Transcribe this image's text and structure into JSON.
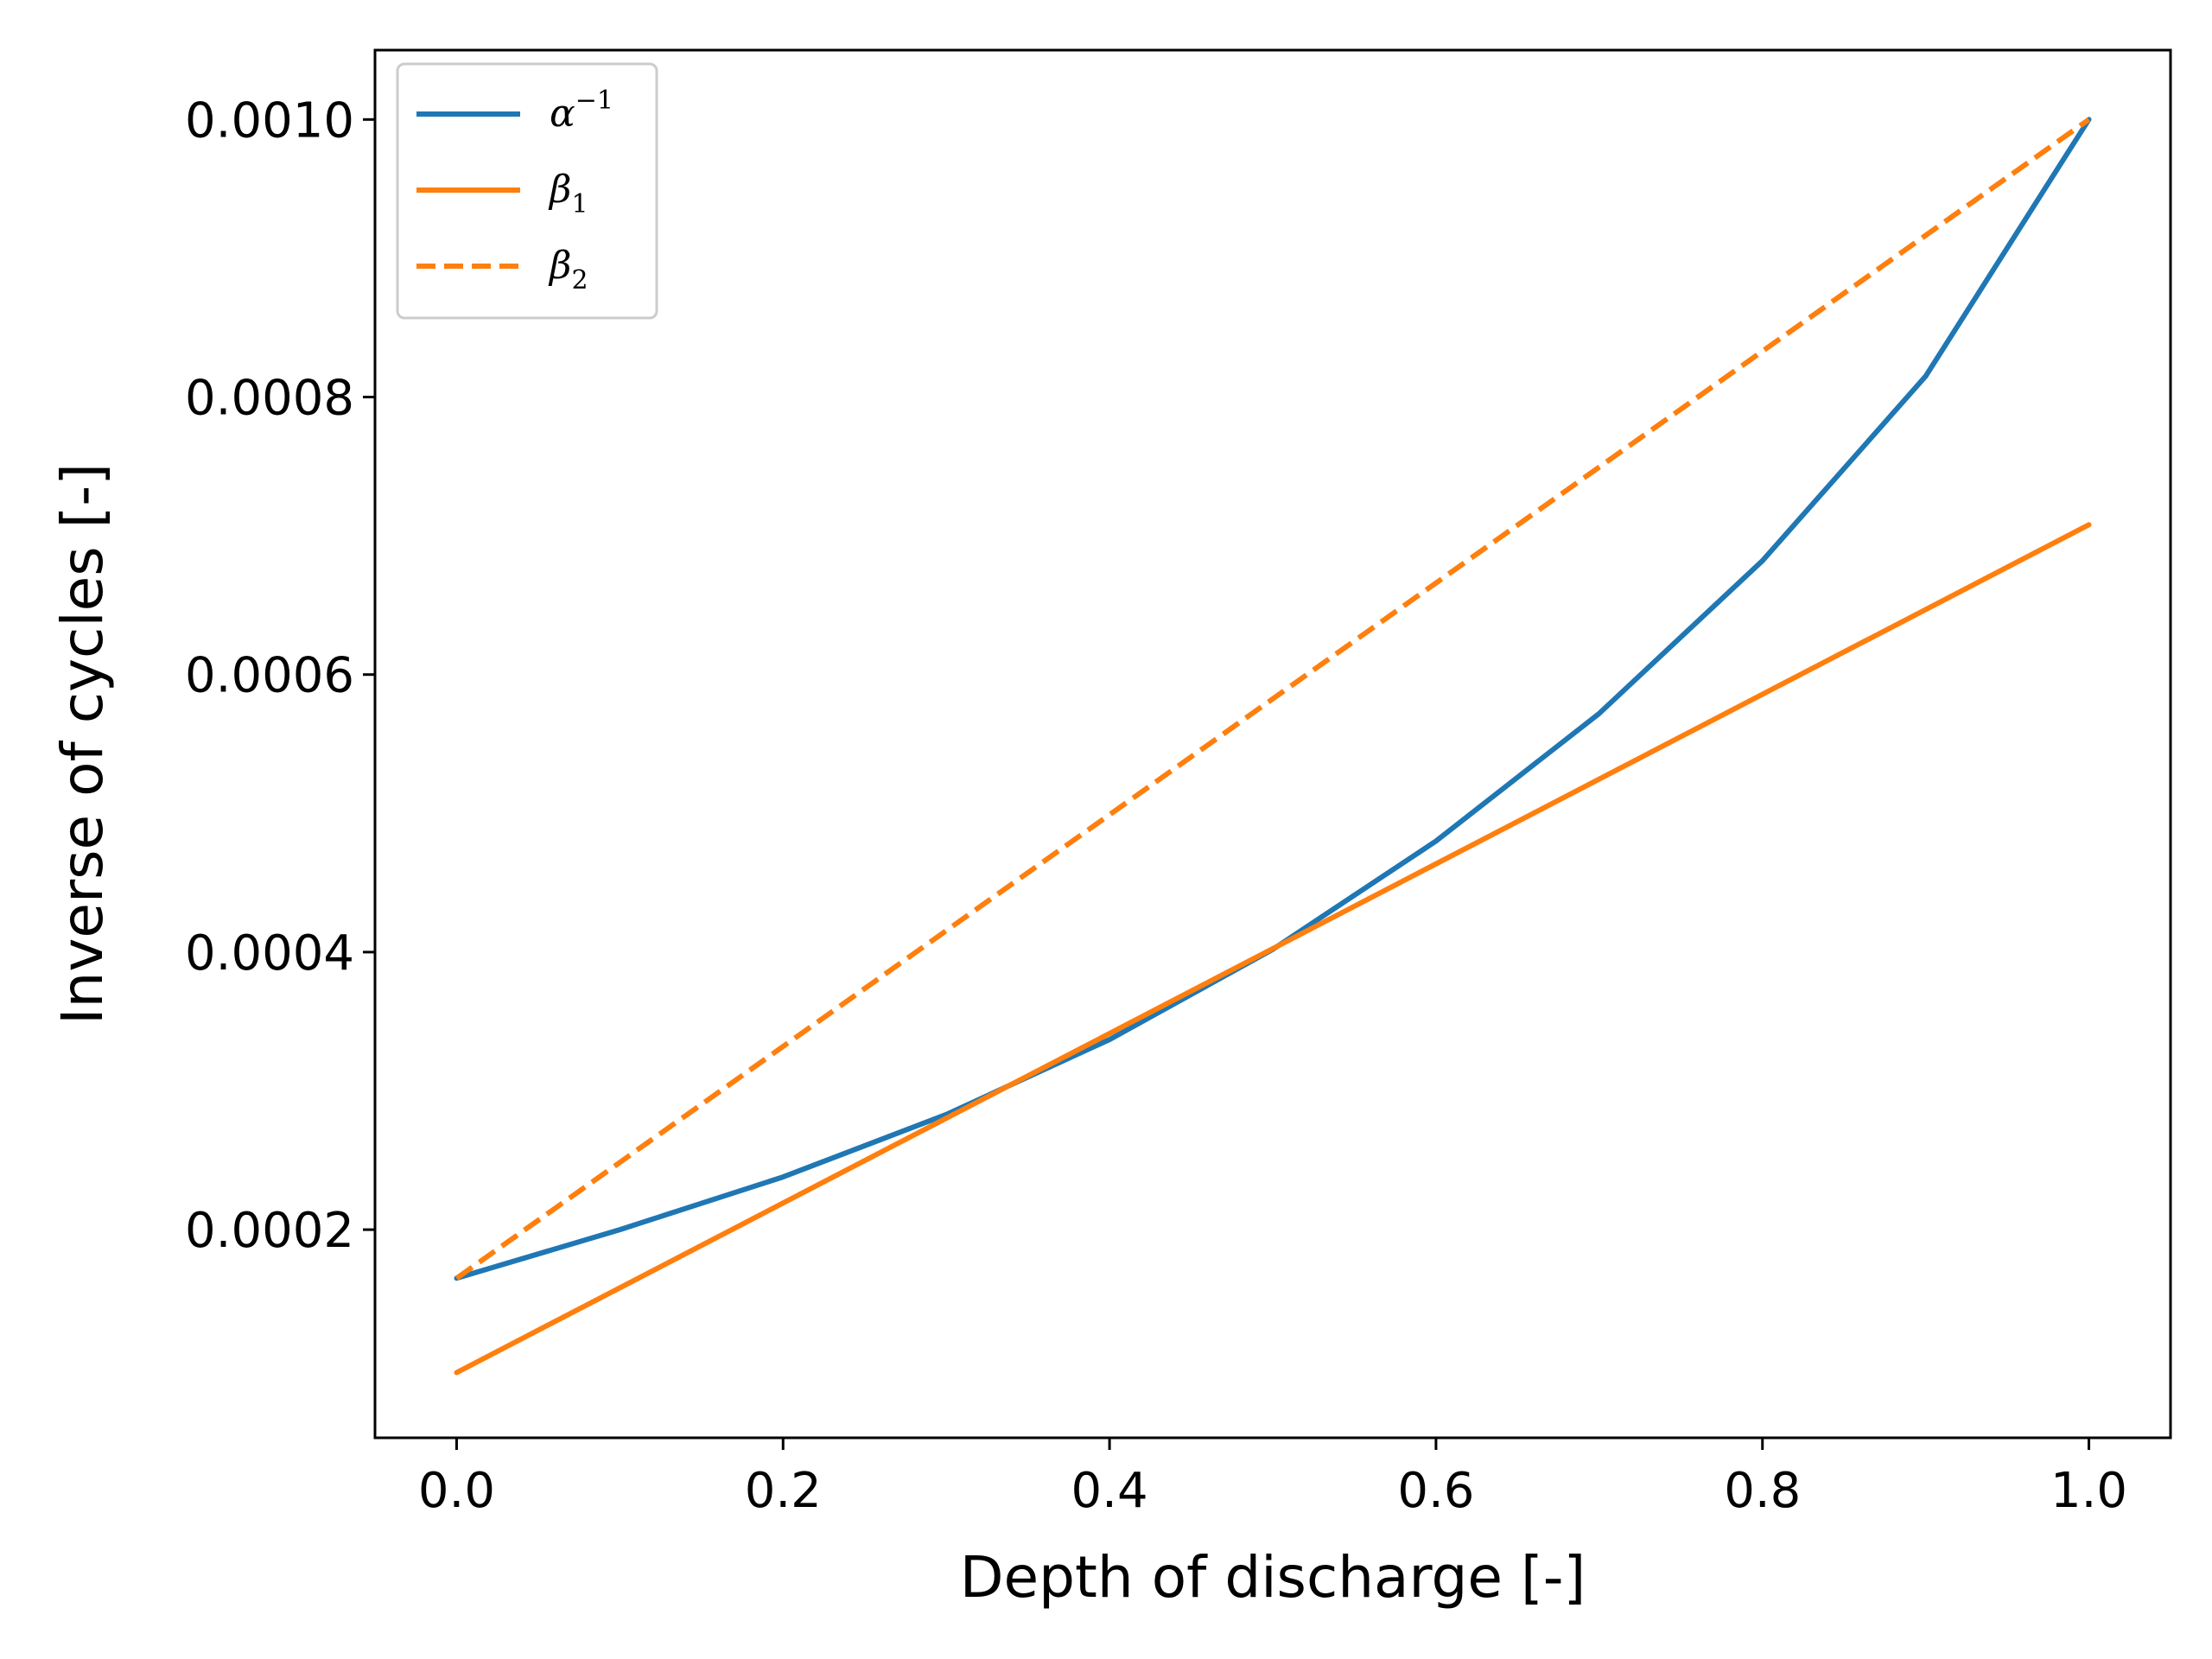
{
  "chart_data": {
    "type": "line",
    "title": "",
    "xlabel": "Depth of discharge [-]",
    "ylabel": "Inverse of cycles [-]",
    "xlim": [
      -0.05,
      1.05
    ],
    "ylim": [
      5e-05,
      0.00105
    ],
    "grid": false,
    "legend_position": "top-left",
    "x_ticks": [
      0.0,
      0.2,
      0.4,
      0.6,
      0.8,
      1.0
    ],
    "x_tick_labels": [
      "0.0",
      "0.2",
      "0.4",
      "0.6",
      "0.8",
      "1.0"
    ],
    "y_ticks": [
      0.0002,
      0.0004,
      0.0006,
      0.0008,
      0.001
    ],
    "y_tick_labels": [
      "0.0002",
      "0.0004",
      "0.0006",
      "0.0008",
      "0.0010"
    ],
    "series": [
      {
        "name": "α⁻¹",
        "legend_main": "α",
        "legend_sup": "−1",
        "legend_sub": "",
        "color": "#1f77b4",
        "style": "solid",
        "x": [
          0.0,
          0.1,
          0.2,
          0.3,
          0.4,
          0.5,
          0.6,
          0.7,
          0.8,
          0.9,
          1.0
        ],
        "y": [
          0.000165,
          0.0002,
          0.000238,
          0.000283,
          0.000337,
          0.000402,
          0.00048,
          0.000572,
          0.000682,
          0.000815,
          0.001
        ]
      },
      {
        "name": "β₁",
        "legend_main": "β",
        "legend_sup": "",
        "legend_sub": "1",
        "color": "#ff7f0e",
        "style": "solid",
        "x": [
          0.0,
          1.0
        ],
        "y": [
          9.7e-05,
          0.000708
        ]
      },
      {
        "name": "β₂",
        "legend_main": "β",
        "legend_sup": "",
        "legend_sub": "2",
        "color": "#ff7f0e",
        "style": "dashed",
        "x": [
          0.0,
          1.0
        ],
        "y": [
          0.000165,
          0.001
        ]
      }
    ]
  }
}
